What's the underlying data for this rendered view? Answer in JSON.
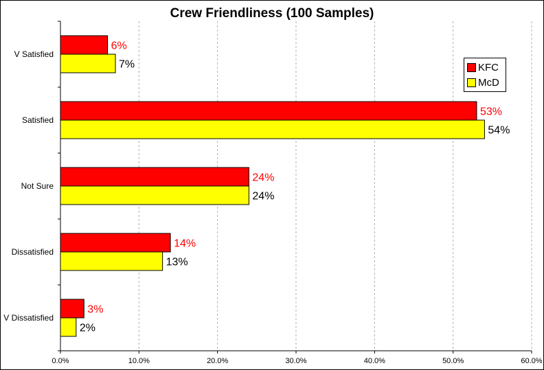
{
  "chart_data": {
    "type": "bar",
    "orientation": "horizontal",
    "title": "Crew Friendliness (100 Samples)",
    "categories": [
      "V Satisfied",
      "Satisfied",
      "Not Sure",
      "Dissatisfied",
      "V Dissatisfied"
    ],
    "series": [
      {
        "name": "KFC",
        "values": [
          6,
          53,
          24,
          14,
          3
        ],
        "color": "#ff0000",
        "label_color": "#ff0000"
      },
      {
        "name": "McD",
        "values": [
          7,
          54,
          24,
          13,
          2
        ],
        "color": "#ffff00",
        "label_color": "#000000"
      }
    ],
    "data_labels": {
      "KFC": [
        "6%",
        "53%",
        "24%",
        "14%",
        "3%"
      ],
      "McD": [
        "7%",
        "54%",
        "24%",
        "13%",
        "2%"
      ]
    },
    "xlim": [
      0,
      60
    ],
    "xticks": [
      "0.0%",
      "10.0%",
      "20.0%",
      "30.0%",
      "40.0%",
      "50.0%",
      "60.0%"
    ],
    "xlabel": "",
    "ylabel": "",
    "grid": "vertical-dashed",
    "legend_position": "right"
  }
}
